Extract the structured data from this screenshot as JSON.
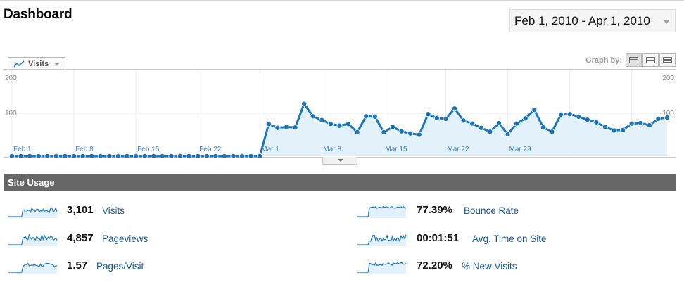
{
  "header": {
    "title": "Dashboard",
    "date_range": "Feb 1, 2010 - Apr 1, 2010"
  },
  "graph": {
    "metric_tab": "Visits",
    "graph_by_label": "Graph by:",
    "graph_by_options": [
      "day",
      "week",
      "month"
    ],
    "active_graph_by": "day"
  },
  "chart_data": {
    "type": "line",
    "series": [
      {
        "name": "Visits",
        "values": [
          0,
          0,
          0,
          0,
          0,
          0,
          0,
          0,
          0,
          0,
          0,
          0,
          0,
          0,
          0,
          0,
          0,
          0,
          0,
          0,
          0,
          0,
          0,
          0,
          0,
          0,
          0,
          0,
          0,
          75,
          66,
          68,
          67,
          122,
          93,
          84,
          75,
          71,
          75,
          56,
          93,
          92,
          56,
          68,
          58,
          53,
          50,
          98,
          89,
          87,
          111,
          83,
          76,
          66,
          57,
          77,
          51,
          76,
          88,
          108,
          67,
          57,
          97,
          98,
          92,
          85,
          79,
          68,
          60,
          61,
          76,
          77,
          72,
          87,
          90
        ]
      }
    ],
    "x_tick_labels": [
      "Feb 1",
      "Feb 8",
      "Feb 15",
      "Feb 22",
      "Mar 1",
      "Mar 8",
      "Mar 15",
      "Mar 22",
      "Mar 29"
    ],
    "y_tick_labels_left": [
      "200",
      "100"
    ],
    "y_tick_labels_right": [
      "200",
      "100"
    ],
    "ylim": [
      0,
      200
    ],
    "grid": true,
    "line_color": "#1a75bb",
    "fill_color": "#e3f1fa"
  },
  "site_usage": {
    "title": "Site Usage",
    "stats": [
      {
        "value": "3,101",
        "label": "Visits"
      },
      {
        "value": "4,857",
        "label": "Pageviews"
      },
      {
        "value": "1.57",
        "label": "Pages/Visit"
      },
      {
        "value": "77.39%",
        "label": "Bounce Rate"
      },
      {
        "value": "00:01:51",
        "label": "Avg. Time on Site"
      },
      {
        "value": "72.20%",
        "label": "% New Visits"
      }
    ]
  }
}
